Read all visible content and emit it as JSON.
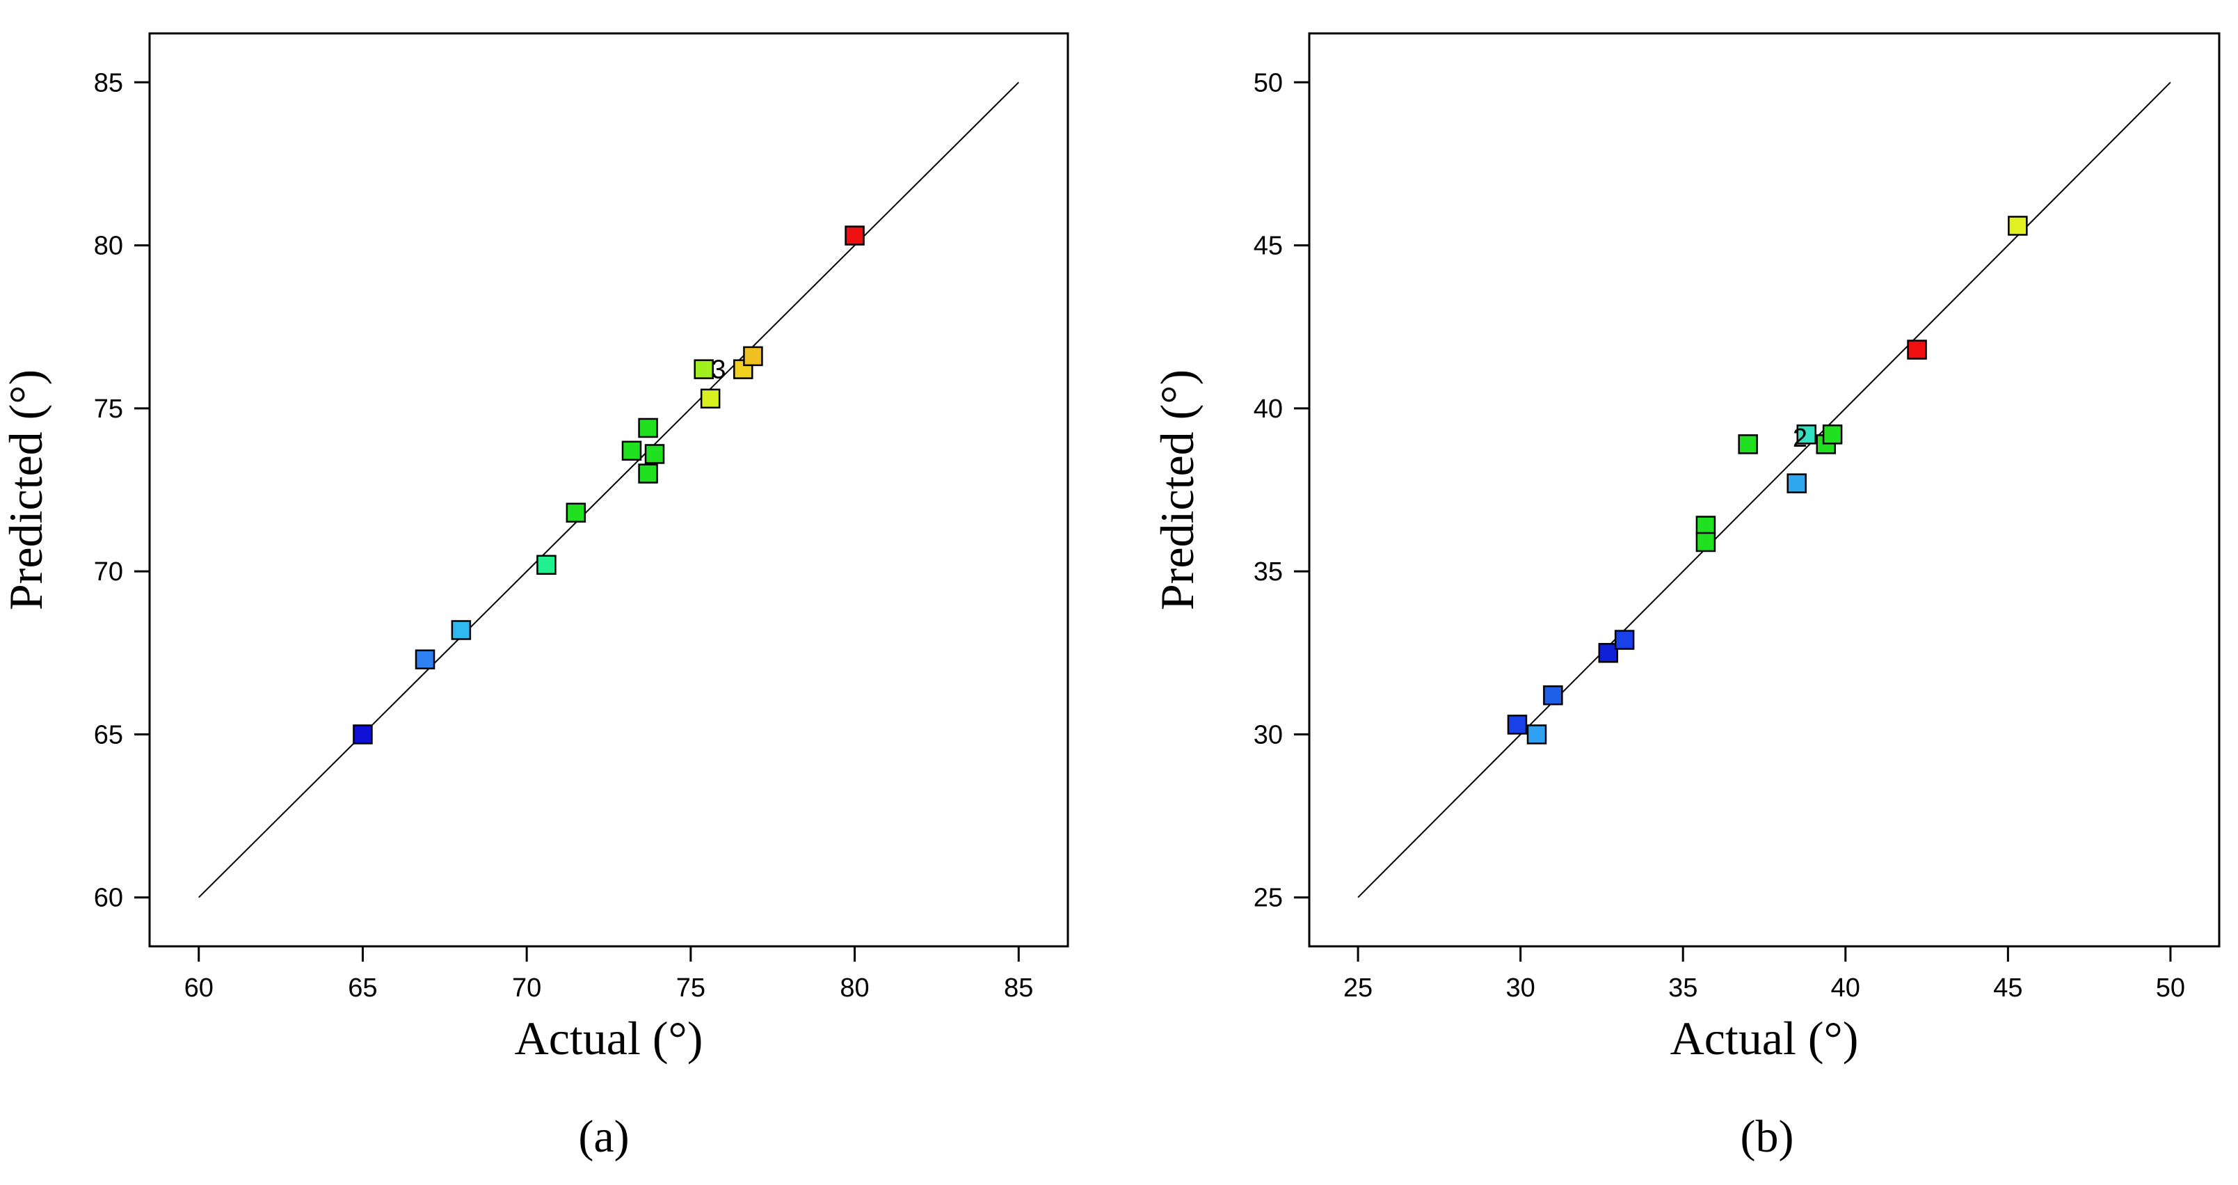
{
  "chart_data": [
    {
      "type": "scatter",
      "caption": "(a)",
      "xlabel": "Actual (°)",
      "ylabel": "Predicted (°)",
      "xlim": [
        58.5,
        86.5
      ],
      "ylim": [
        58.5,
        86.5
      ],
      "xticks": [
        60,
        65,
        70,
        75,
        80,
        85
      ],
      "yticks": [
        60,
        65,
        70,
        75,
        80,
        85
      ],
      "xtick_labels": [
        "60",
        "65",
        "70",
        "75",
        "80",
        "85"
      ],
      "ytick_labels": [
        "60",
        "65",
        "70",
        "75",
        "80",
        "85"
      ],
      "reference_line": [
        [
          60,
          60
        ],
        [
          85,
          85
        ]
      ],
      "grid": false,
      "points": [
        {
          "x": 65.0,
          "y": 65.0,
          "color": "#1010d8"
        },
        {
          "x": 66.9,
          "y": 67.3,
          "color": "#2f80f0"
        },
        {
          "x": 68.0,
          "y": 68.2,
          "color": "#30b8f0"
        },
        {
          "x": 70.6,
          "y": 70.2,
          "color": "#20f090"
        },
        {
          "x": 71.5,
          "y": 71.8,
          "color": "#20e020"
        },
        {
          "x": 73.2,
          "y": 73.7,
          "color": "#20e020"
        },
        {
          "x": 73.7,
          "y": 74.4,
          "color": "#20e020"
        },
        {
          "x": 73.7,
          "y": 73.0,
          "color": "#20e020"
        },
        {
          "x": 73.9,
          "y": 73.6,
          "color": "#20e020"
        },
        {
          "x": 75.4,
          "y": 76.2,
          "color": "#a0f020"
        },
        {
          "x": 75.6,
          "y": 75.3,
          "color": "#d8f020"
        },
        {
          "x": 76.6,
          "y": 76.2,
          "color": "#f0d020"
        },
        {
          "x": 76.9,
          "y": 76.6,
          "color": "#f0c020"
        },
        {
          "x": 80.0,
          "y": 80.3,
          "color": "#ee1010"
        }
      ],
      "annotations": [
        {
          "text": "3",
          "x": 75.85,
          "y": 76.2
        }
      ]
    },
    {
      "type": "scatter",
      "caption": "(b)",
      "xlabel": "Actual (°)",
      "ylabel": "Predicted (°)",
      "xlim": [
        23.5,
        51.5
      ],
      "ylim": [
        23.5,
        51.5
      ],
      "xticks": [
        25,
        30,
        35,
        40,
        45,
        50
      ],
      "yticks": [
        25,
        30,
        35,
        40,
        45,
        50
      ],
      "xtick_labels": [
        "25",
        "30",
        "35",
        "40",
        "45",
        "50"
      ],
      "ytick_labels": [
        "25",
        "30",
        "35",
        "40",
        "45",
        "50"
      ],
      "reference_line": [
        [
          25,
          25
        ],
        [
          50,
          50
        ]
      ],
      "grid": false,
      "points": [
        {
          "x": 29.9,
          "y": 30.3,
          "color": "#1a40e8"
        },
        {
          "x": 30.5,
          "y": 30.0,
          "color": "#30a0f0"
        },
        {
          "x": 31.0,
          "y": 31.2,
          "color": "#2060e8"
        },
        {
          "x": 32.7,
          "y": 32.5,
          "color": "#1020d8"
        },
        {
          "x": 33.2,
          "y": 32.9,
          "color": "#1a40e8"
        },
        {
          "x": 35.7,
          "y": 36.4,
          "color": "#20e020"
        },
        {
          "x": 35.7,
          "y": 35.9,
          "color": "#20e020"
        },
        {
          "x": 37.0,
          "y": 38.9,
          "color": "#20e020"
        },
        {
          "x": 38.5,
          "y": 37.7,
          "color": "#30a8f0"
        },
        {
          "x": 38.8,
          "y": 39.2,
          "color": "#30e0c0"
        },
        {
          "x": 39.4,
          "y": 38.9,
          "color": "#20e020"
        },
        {
          "x": 39.6,
          "y": 39.2,
          "color": "#20e020"
        },
        {
          "x": 42.2,
          "y": 41.8,
          "color": "#ee1010"
        },
        {
          "x": 45.3,
          "y": 45.6,
          "color": "#e0f020"
        }
      ],
      "annotations": [
        {
          "text": "2",
          "x": 38.6,
          "y": 39.1
        }
      ]
    }
  ]
}
